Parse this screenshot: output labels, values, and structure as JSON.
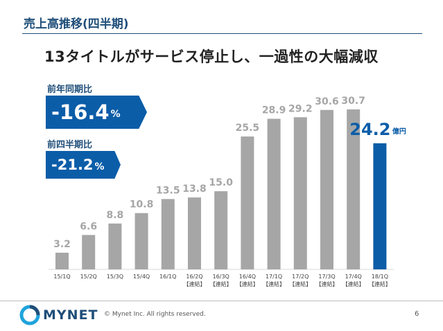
{
  "header": {
    "slide_title": "売上高推移(四半期)",
    "headline": "13タイトルがサービス停止し、一過性の大幅減収"
  },
  "kpis": [
    {
      "label": "前年同期比",
      "value": "-16.4",
      "unit": "%"
    },
    {
      "label": "前四半期比",
      "value": "-21.2",
      "unit": "%"
    }
  ],
  "colors": {
    "accent": "#0b5da8",
    "bar_gray": "#a6a6a6",
    "label_gray": "#a6a6a6",
    "title_blue": "#1f4e79"
  },
  "chart_data": {
    "type": "bar",
    "categories": [
      "15/1Q",
      "15/2Q",
      "15/3Q",
      "15/4Q",
      "16/1Q",
      "16/2Q",
      "16/3Q",
      "16/4Q",
      "17/1Q",
      "17/2Q",
      "17/3Q",
      "17/4Q",
      "18/1Q"
    ],
    "category_notes": [
      "",
      "",
      "",
      "",
      "",
      "【連結】",
      "【連結】",
      "【連結】",
      "【連結】",
      "【連結】",
      "【連結】",
      "【連結】",
      "【連結】"
    ],
    "values": [
      3.2,
      6.6,
      8.8,
      10.8,
      13.5,
      13.8,
      15.0,
      25.5,
      28.9,
      29.2,
      30.6,
      30.7,
      24.2
    ],
    "value_labels": [
      "3.2",
      "6.6",
      "8.8",
      "10.8",
      "13.5",
      "13.8",
      "15.0",
      "25.5",
      "28.9",
      "29.2",
      "30.6",
      "30.7",
      "24.2"
    ],
    "highlight_index": 12,
    "highlight_unit": "億円",
    "ylim": [
      0,
      30.7
    ],
    "grid": false,
    "legend": "none",
    "title": "",
    "xlabel": "",
    "ylabel": ""
  },
  "footer": {
    "logo_text": "MYNET",
    "copyright": "© Mynet Inc. All rights reserved.",
    "page_number": "6"
  }
}
